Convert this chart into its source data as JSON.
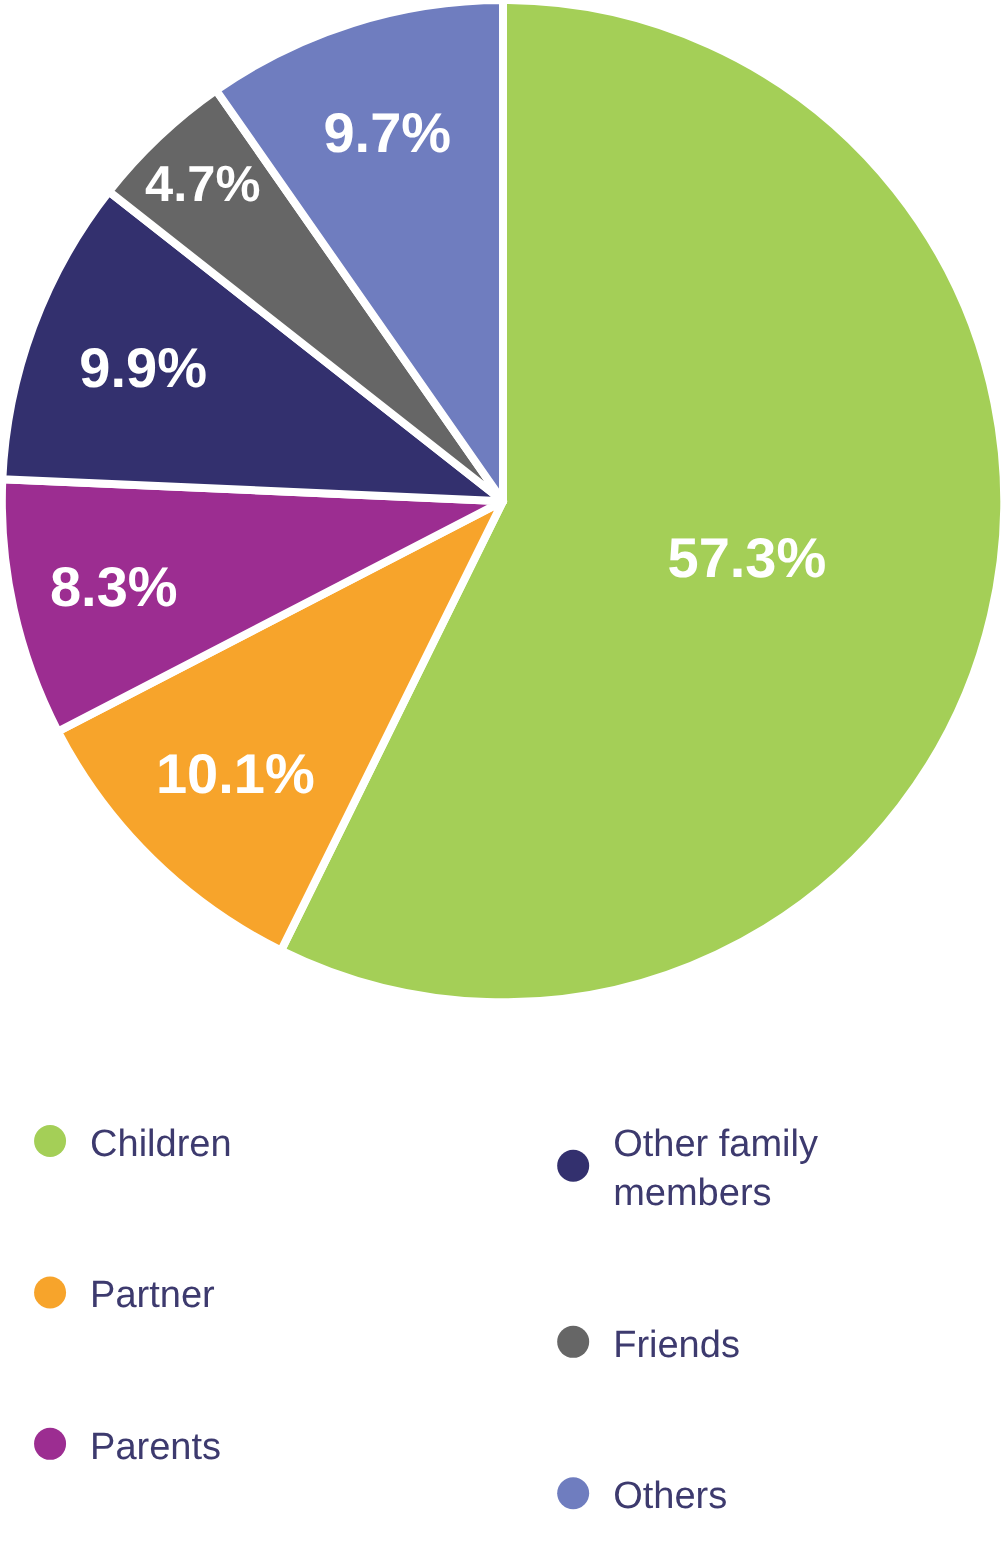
{
  "chart_data": {
    "type": "pie",
    "categories": [
      "Children",
      "Partner",
      "Parents",
      "Other family members",
      "Friends",
      "Others"
    ],
    "values": [
      57.3,
      10.1,
      8.3,
      9.9,
      4.7,
      9.7
    ],
    "colors": [
      "#a4cf57",
      "#f7a42b",
      "#9c2d91",
      "#33306e",
      "#666666",
      "#6f7dbf"
    ],
    "value_labels": [
      "57.3%",
      "10.1%",
      "8.3%",
      "9.9%",
      "4.7%",
      "9.7%"
    ],
    "legend": "bottom"
  }
}
